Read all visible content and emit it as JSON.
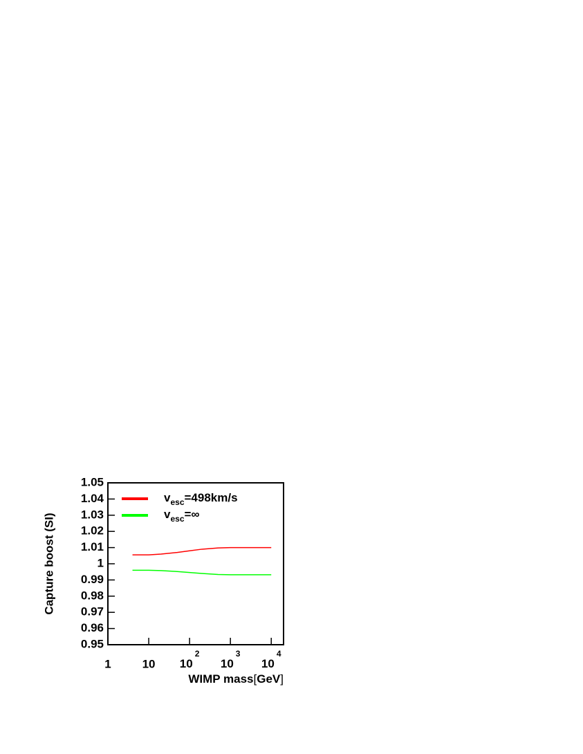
{
  "chart_data": {
    "type": "line",
    "x_label": [
      "WIMP mass",
      "[",
      "GeV",
      "]"
    ],
    "y_label": "Capture boost (SI)",
    "x": [
      4,
      10,
      20,
      50,
      100,
      200,
      500,
      1000,
      2000,
      5000,
      10000
    ],
    "series": [
      {
        "name": [
          "v",
          "esc",
          "=498km/s"
        ],
        "color": "#ff0000",
        "values": [
          1.0055,
          1.0055,
          1.006,
          1.007,
          1.008,
          1.009,
          1.0098,
          1.01,
          1.01,
          1.01,
          1.01
        ]
      },
      {
        "name": [
          "v",
          "esc",
          "=∞"
        ],
        "color": "#00ff00",
        "values": [
          0.996,
          0.996,
          0.9958,
          0.9952,
          0.9946,
          0.994,
          0.9934,
          0.9932,
          0.9932,
          0.9932,
          0.9932
        ]
      }
    ],
    "xscale": "log",
    "xlim": [
      1,
      20000
    ],
    "xticks": [
      1,
      10,
      {
        "value": 100,
        "label": [
          "10",
          "2"
        ]
      },
      {
        "value": 1000,
        "label": [
          "10",
          "3"
        ]
      },
      {
        "value": 10000,
        "label": [
          "10",
          "4"
        ]
      }
    ],
    "ylim": [
      0.95,
      1.05
    ],
    "yticks": [
      0.95,
      0.96,
      0.97,
      0.98,
      0.99,
      1,
      1.01,
      1.02,
      1.03,
      1.04,
      1.05
    ],
    "grid": false,
    "legend": "upper left"
  }
}
